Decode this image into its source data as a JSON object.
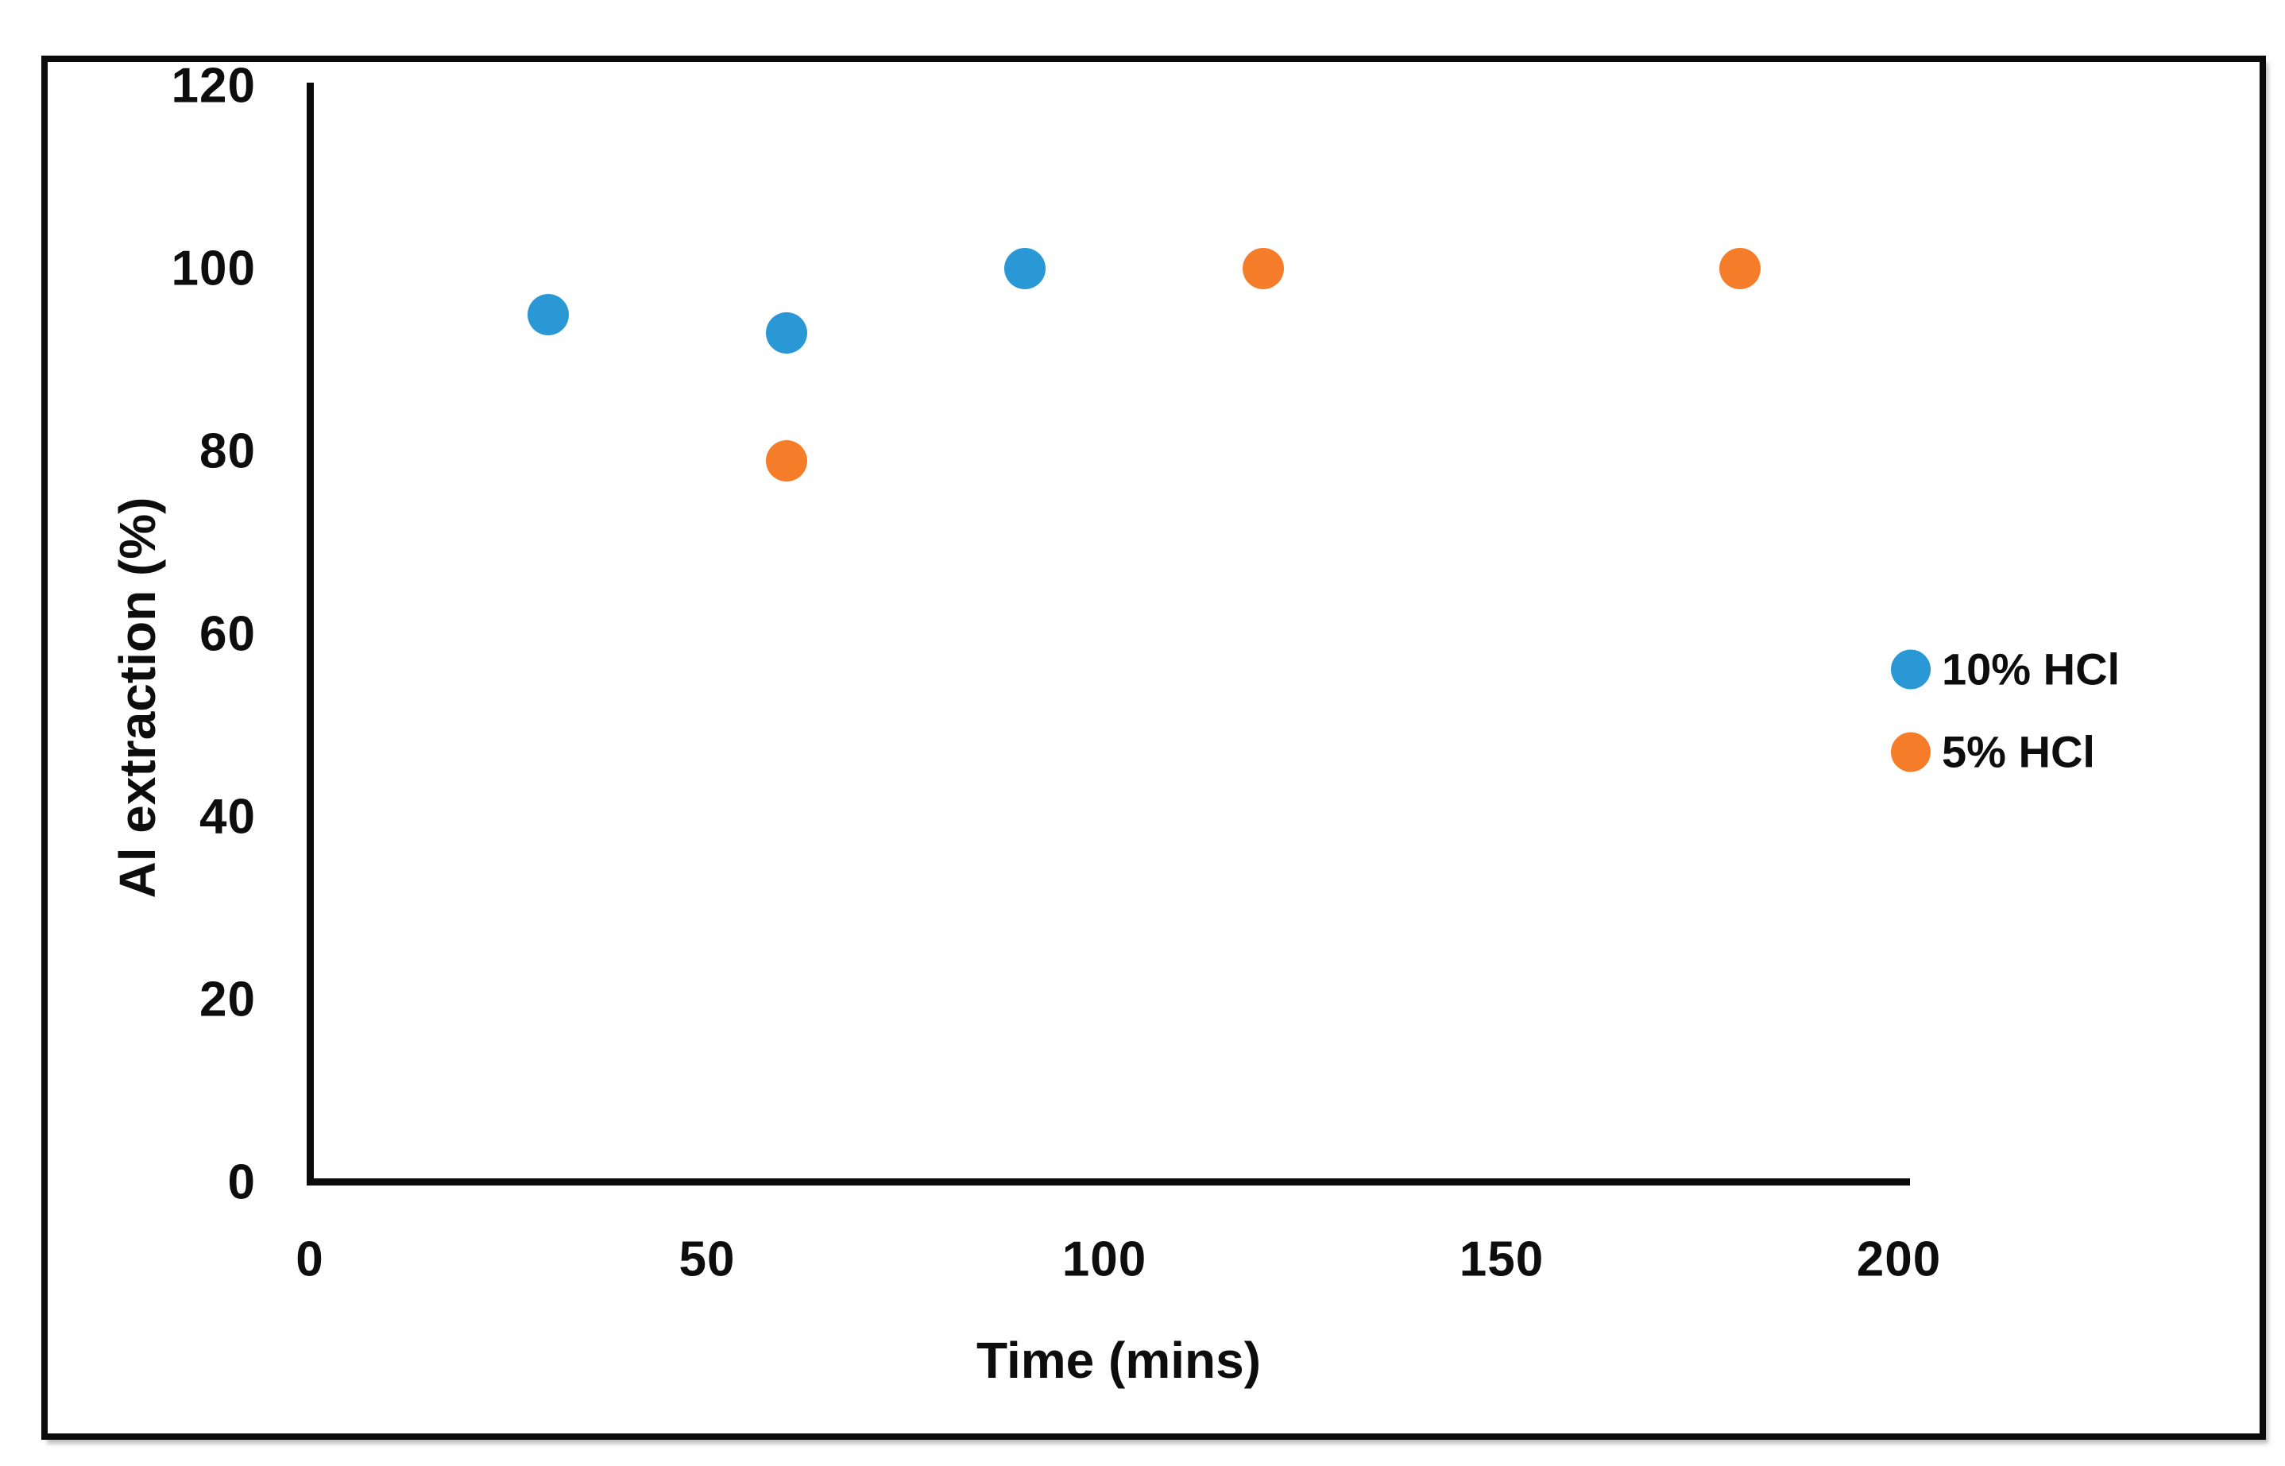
{
  "figure": {
    "background": "#ffffff",
    "frame_border_color": "#0b0b0b",
    "axis_color": "#0b0b0b",
    "tick_label_color": "#0d0d0d"
  },
  "chart_data": {
    "type": "scatter",
    "title": "",
    "xlabel": "Time (mins)",
    "ylabel": "Al extraction (%)",
    "xlim": [
      0,
      200
    ],
    "ylim": [
      0,
      120
    ],
    "x_ticks": [
      0,
      50,
      100,
      150,
      200
    ],
    "y_ticks": [
      0,
      20,
      40,
      60,
      80,
      100,
      120
    ],
    "grid": false,
    "legend_position": "center-right",
    "series": [
      {
        "name": "10% HCl",
        "color": "#2998D5",
        "points": [
          {
            "x": 30,
            "y": 95
          },
          {
            "x": 60,
            "y": 93
          },
          {
            "x": 90,
            "y": 100
          }
        ]
      },
      {
        "name": "5% HCl",
        "color": "#F57D2A",
        "points": [
          {
            "x": 60,
            "y": 79
          },
          {
            "x": 120,
            "y": 100
          },
          {
            "x": 180,
            "y": 100
          }
        ]
      }
    ]
  }
}
